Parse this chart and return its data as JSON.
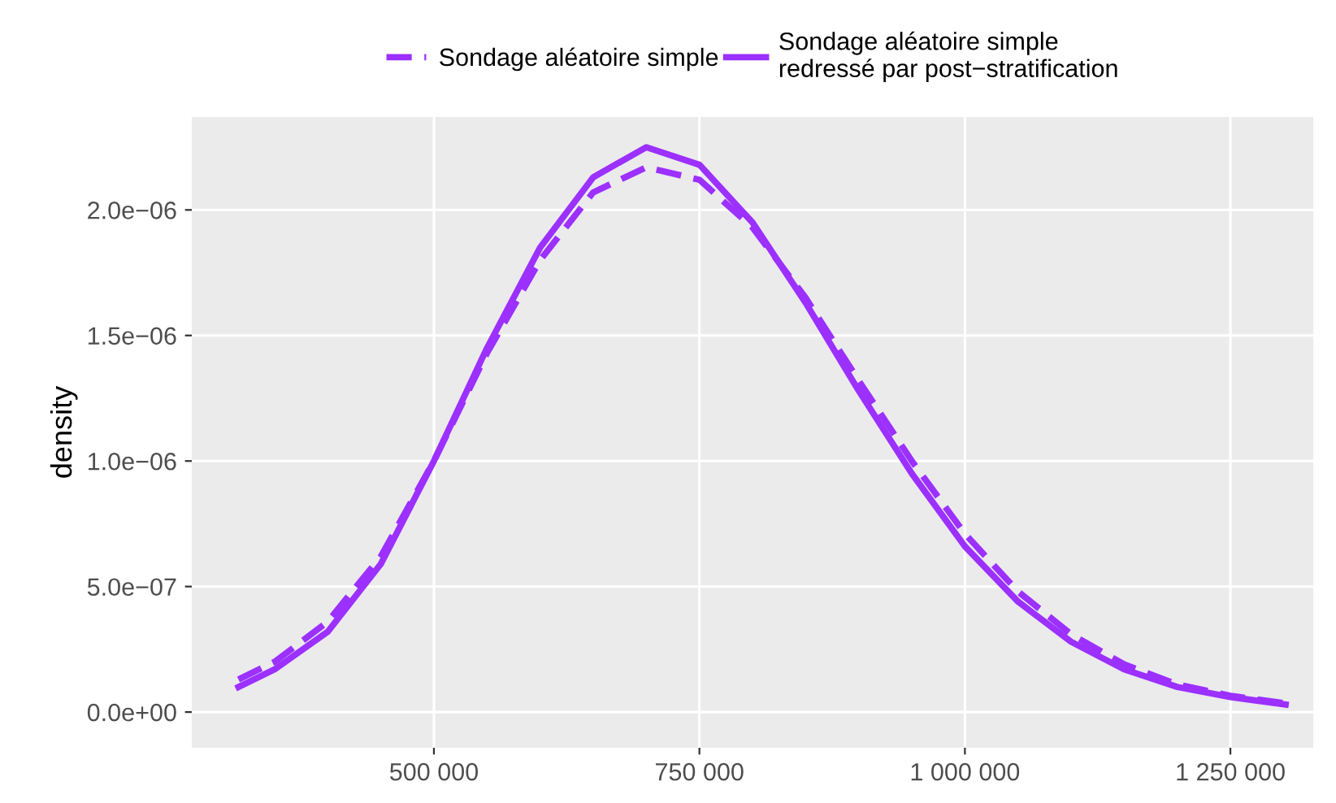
{
  "chart_data": {
    "type": "line",
    "ylabel": "density",
    "series": [
      {
        "name": "Sondage aléatoire simple",
        "color": "#9b30ff",
        "line_style": "dashed",
        "x": [
          316000,
          350000,
          400000,
          450000,
          500000,
          550000,
          600000,
          650000,
          700000,
          750000,
          800000,
          850000,
          900000,
          950000,
          1000000,
          1050000,
          1100000,
          1150000,
          1200000,
          1250000,
          1302000
        ],
        "values": [
          1.3e-07,
          2e-07,
          3.6e-07,
          6.2e-07,
          1e-06,
          1.43e-06,
          1.8e-06,
          2.07e-06,
          2.17e-06,
          2.12e-06,
          1.93e-06,
          1.65e-06,
          1.32e-06,
          1e-06,
          7.1e-07,
          4.8e-07,
          3.1e-07,
          1.9e-07,
          1.1e-07,
          6.5e-08,
          3.5e-08
        ]
      },
      {
        "name": "Sondage aléatoire simple\nredressé par post−stratification",
        "color": "#9b30ff",
        "line_style": "solid",
        "x": [
          316000,
          350000,
          400000,
          450000,
          500000,
          550000,
          600000,
          650000,
          700000,
          750000,
          800000,
          850000,
          900000,
          950000,
          1000000,
          1050000,
          1100000,
          1150000,
          1200000,
          1250000,
          1302000
        ],
        "values": [
          1e-07,
          1.7e-07,
          3.2e-07,
          5.9e-07,
          1e-06,
          1.45e-06,
          1.85e-06,
          2.13e-06,
          2.25e-06,
          2.18e-06,
          1.95e-06,
          1.63e-06,
          1.28e-06,
          9.5e-07,
          6.6e-07,
          4.4e-07,
          2.8e-07,
          1.7e-07,
          1e-07,
          6e-08,
          3e-08
        ]
      }
    ],
    "xlim": [
      272000,
      1328000
    ],
    "xticks": [
      {
        "value": 500000,
        "label": "500 000"
      },
      {
        "value": 750000,
        "label": "750 000"
      },
      {
        "value": 1000000,
        "label": "1 000 000"
      },
      {
        "value": 1250000,
        "label": "1 250 000"
      }
    ],
    "ylim": [
      -1.42e-07,
      2.37e-06
    ],
    "yticks": [
      {
        "value": 0,
        "label": "0.0e+00"
      },
      {
        "value": 5e-07,
        "label": "5.0e−07"
      },
      {
        "value": 1e-06,
        "label": "1.0e−06"
      },
      {
        "value": 1.5e-06,
        "label": "1.5e−06"
      },
      {
        "value": 2e-06,
        "label": "2.0e−06"
      }
    ],
    "grid": true,
    "legend": "top"
  }
}
